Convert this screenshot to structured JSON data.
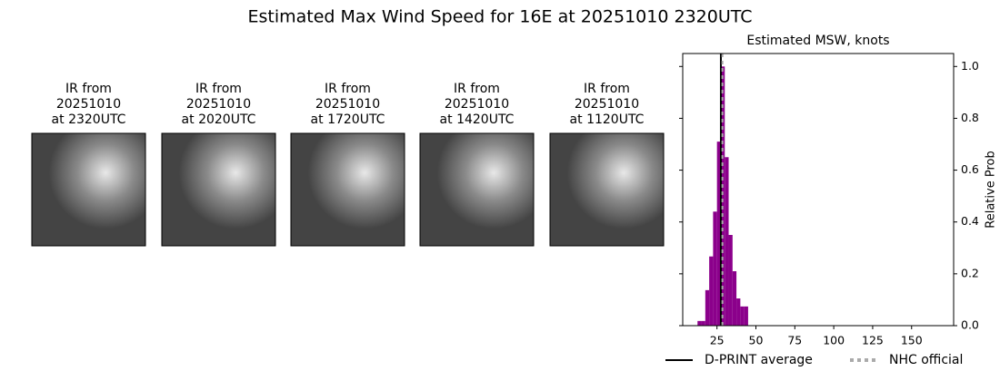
{
  "title": "Estimated Max Wind Speed for 16E at 20251010 2320UTC",
  "panels": [
    {
      "lines": [
        "IR from",
        "20251010",
        "at 2320UTC"
      ]
    },
    {
      "lines": [
        "IR from",
        "20251010",
        "at 2020UTC"
      ]
    },
    {
      "lines": [
        "IR from",
        "20251010",
        "at 1720UTC"
      ]
    },
    {
      "lines": [
        "IR from",
        "20251010",
        "at 1420UTC"
      ]
    },
    {
      "lines": [
        "IR from",
        "20251010",
        "at 1120UTC"
      ]
    }
  ],
  "chart_data": {
    "type": "histogram",
    "title": "Estimated MSW, knots",
    "ylabel": "Relative Prob",
    "bins": [
      12.5,
      15,
      17.5,
      20,
      22.5,
      25,
      27.5,
      30,
      32.5,
      35,
      37.5,
      40,
      42.5,
      45
    ],
    "values": [
      0.018,
      0.018,
      0.137,
      0.267,
      0.44,
      0.71,
      1.0,
      0.65,
      0.35,
      0.21,
      0.105,
      0.074,
      0.074
    ],
    "color": "#8b008b",
    "xlim": [
      3,
      177
    ],
    "xticks": [
      25,
      50,
      75,
      100,
      125,
      150
    ],
    "ylim": [
      0,
      1.05
    ],
    "yticks": [
      {
        "value": 0,
        "label": "0.0"
      },
      {
        "value": 0.2,
        "label": "0.2"
      },
      {
        "value": 0.4,
        "label": "0.4"
      },
      {
        "value": 0.6,
        "label": "0.6"
      },
      {
        "value": 0.8,
        "label": "0.8"
      },
      {
        "value": 1,
        "label": "1.0"
      }
    ],
    "lines": [
      {
        "name": "D-PRINT average",
        "value": 27.5,
        "color": "#000000",
        "style": "solid"
      },
      {
        "name": "NHC official",
        "value": 28.5,
        "color": "#aaaaaa",
        "style": "dotted"
      }
    ]
  }
}
